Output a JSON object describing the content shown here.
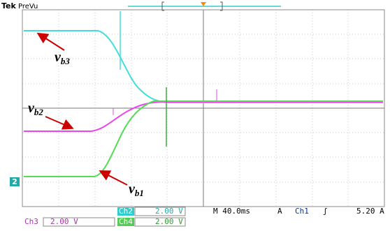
{
  "header": {
    "brand": "Tek",
    "mode": "PreVu"
  },
  "labels": {
    "vb3": {
      "main": "v",
      "sub": "b3"
    },
    "vb2": {
      "main": "v",
      "sub": "b2"
    },
    "vb1": {
      "main": "v",
      "sub": "b1"
    }
  },
  "ground_marker": "2",
  "status": {
    "ch2": {
      "name": "Ch2",
      "scale": "2.00 V"
    },
    "timebase": "M 40.0ms",
    "trigger": {
      "mode": "A",
      "source": "Ch1",
      "slope": "ʃ",
      "level": "5.20 A"
    },
    "ch3": {
      "name": "Ch3",
      "scale": "2.00 V"
    },
    "ch4": {
      "name": "Ch4",
      "scale": "2.00 V"
    }
  }
}
